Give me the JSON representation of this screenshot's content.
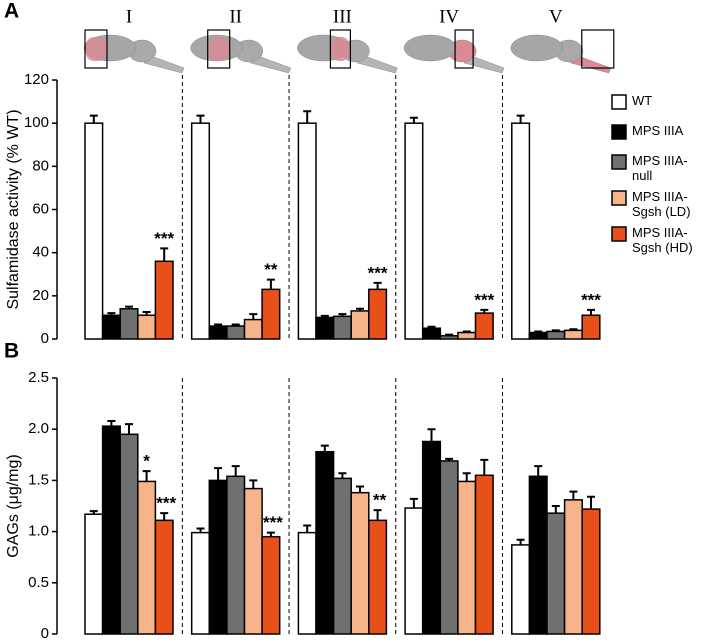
{
  "chart_data": [
    {
      "type": "bar",
      "panel": "A",
      "y_label": "Sulfamidase activity (% WT)",
      "categories": [
        "I",
        "II",
        "III",
        "IV",
        "V"
      ],
      "ylim": [
        0,
        120
      ],
      "yticks": [
        0,
        20,
        40,
        60,
        80,
        100,
        120
      ],
      "series": [
        {
          "name": "WT",
          "color": "#ffffff",
          "values": [
            100,
            100,
            100,
            100,
            100
          ],
          "errors": [
            3.5,
            3.5,
            5.5,
            2.5,
            3.5
          ]
        },
        {
          "name": "MPS IIIA",
          "color": "#000000",
          "values": [
            11,
            6,
            10,
            5,
            3
          ],
          "errors": [
            1,
            0.7,
            0.7,
            0.7,
            0.5
          ]
        },
        {
          "name": "MPS IIIA-null",
          "color": "#707070",
          "values": [
            14,
            6,
            10.5,
            1.5,
            3.5
          ],
          "errors": [
            1,
            0.7,
            1,
            0.5,
            0.5
          ]
        },
        {
          "name": "MPS IIIA-Sgsh (LD)",
          "color": "#f7b48a",
          "values": [
            11,
            9,
            13,
            3,
            4
          ],
          "errors": [
            1.5,
            2.5,
            1,
            0.5,
            0.5
          ]
        },
        {
          "name": "MPS IIIA-Sgsh (HD)",
          "color": "#e8501a",
          "values": [
            36,
            23,
            23,
            12,
            11
          ],
          "errors": [
            6,
            4.5,
            3,
            1.5,
            2.5
          ],
          "significance": [
            "***",
            "**",
            "***",
            "***",
            "***"
          ]
        }
      ]
    },
    {
      "type": "bar",
      "panel": "B",
      "y_label": "GAGs (μg/mg)",
      "ylim": [
        0,
        2.5
      ],
      "yticks": [
        0,
        0.5,
        {
          "value": 1,
          "label": "1.0"
        },
        1.5,
        {
          "value": 2,
          "label": "2.0"
        },
        2.5
      ],
      "series": [
        {
          "color": "#ffffff",
          "values": [
            1.17,
            0.99,
            0.99,
            1.23,
            0.87
          ],
          "errors": [
            0.03,
            0.04,
            0.07,
            0.09,
            0.05
          ]
        },
        {
          "color": "#000000",
          "values": [
            2.03,
            1.5,
            1.78,
            1.88,
            1.54
          ],
          "errors": [
            0.05,
            0.12,
            0.06,
            0.12,
            0.1
          ]
        },
        {
          "color": "#707070",
          "values": [
            1.95,
            1.54,
            1.52,
            1.69,
            1.18
          ],
          "errors": [
            0.1,
            0.1,
            0.05,
            0.02,
            0.07
          ]
        },
        {
          "color": "#f7b48a",
          "values": [
            1.49,
            1.42,
            1.38,
            1.49,
            1.31
          ],
          "errors": [
            0.1,
            0.08,
            0.06,
            0.08,
            0.08
          ],
          "significance": [
            "*",
            null,
            null,
            null,
            null
          ]
        },
        {
          "color": "#e8501a",
          "values": [
            1.11,
            0.95,
            1.11,
            1.55,
            1.22
          ],
          "errors": [
            0.07,
            0.04,
            0.1,
            0.15,
            0.12
          ],
          "significance": [
            "***",
            "***",
            "**",
            null,
            null
          ]
        }
      ]
    }
  ]
}
